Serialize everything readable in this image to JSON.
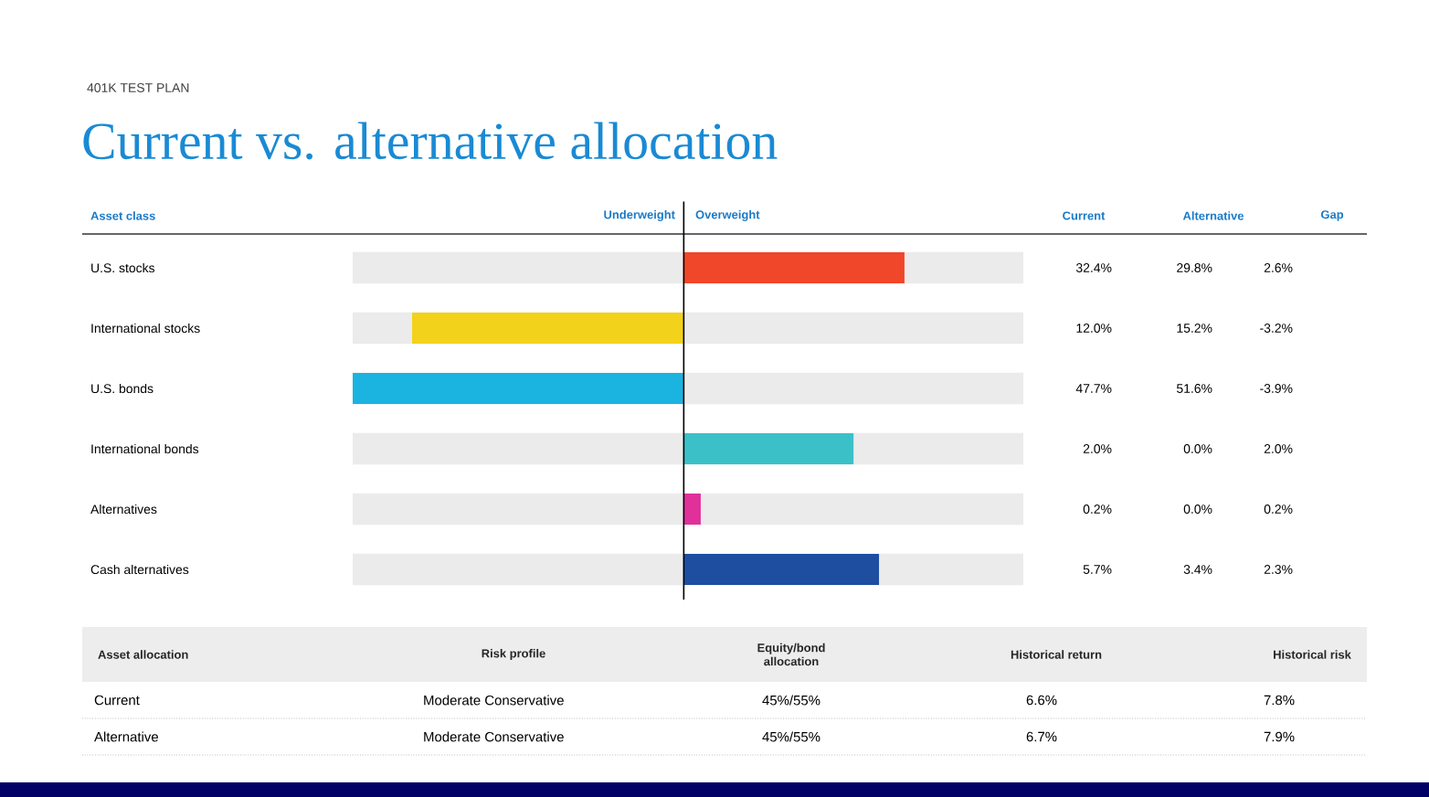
{
  "chart_data": {
    "type": "bar",
    "orientation": "horizontal",
    "subtitle": "401K TEST PLAN",
    "title": "Current vs. alternative allocation",
    "ylabel": "Asset class",
    "categories": [
      "U.S. stocks",
      "International stocks",
      "U.S. bonds",
      "International bonds",
      "Alternatives",
      "Cash alternatives"
    ],
    "values": [
      2.6,
      -3.2,
      -3.9,
      2.0,
      0.2,
      2.3
    ],
    "colors": [
      "#f0462a",
      "#f2d21a",
      "#1bb4e0",
      "#3cc0c8",
      "#e0309a",
      "#1e4ea0"
    ],
    "xlim": [
      -3.9,
      4.0
    ],
    "tick_labels": "y",
    "value_labels": [
      "2.6%",
      "-3.2%",
      "-3.9%",
      "2.0%",
      "0.2%",
      "2.3%"
    ],
    "annotations": [
      "Underweight",
      "Overweight",
      "Current",
      "Alternative",
      "Gap",
      "32.4%",
      "12.0%",
      "47.7%",
      "2.0%",
      "0.2%",
      "5.7%",
      "29.8%",
      "15.2%",
      "51.6%",
      "0.0%",
      "0.0%",
      "3.4%",
      "Asset allocation",
      "Risk profile",
      "Equity/bond allocation",
      "Historical return",
      "Historical risk",
      "Current",
      "Moderate Conservative",
      "45%/55%",
      "6.6%",
      "7.8%",
      "Alternative",
      "Moderate Conservative",
      "45%/55%",
      "6.7%",
      "7.9%"
    ]
  }
}
